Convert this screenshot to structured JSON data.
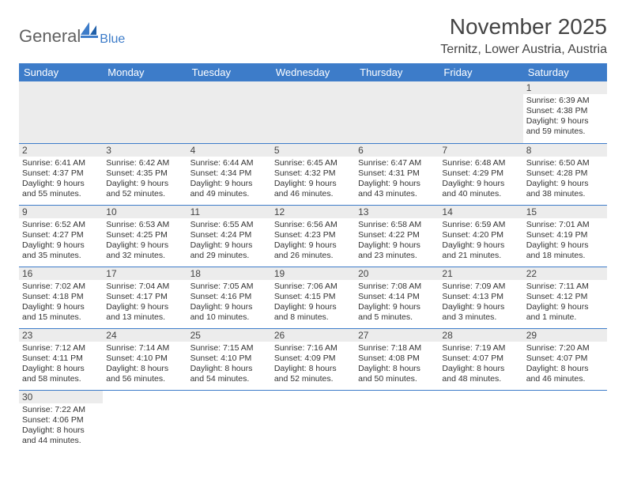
{
  "logo": {
    "general": "General",
    "blue": "Blue"
  },
  "title": "November 2025",
  "location": "Ternitz, Lower Austria, Austria",
  "colors": {
    "header_bg": "#3d7cc9",
    "header_fg": "#ffffff",
    "daynum_bg": "#ececec",
    "rule": "#3d7cc9",
    "text": "#333333"
  },
  "day_names": [
    "Sunday",
    "Monday",
    "Tuesday",
    "Wednesday",
    "Thursday",
    "Friday",
    "Saturday"
  ],
  "lead_blanks": 6,
  "days": [
    {
      "n": 1,
      "sr": "6:39 AM",
      "ss": "4:38 PM",
      "dl": "9 hours and 59 minutes."
    },
    {
      "n": 2,
      "sr": "6:41 AM",
      "ss": "4:37 PM",
      "dl": "9 hours and 55 minutes."
    },
    {
      "n": 3,
      "sr": "6:42 AM",
      "ss": "4:35 PM",
      "dl": "9 hours and 52 minutes."
    },
    {
      "n": 4,
      "sr": "6:44 AM",
      "ss": "4:34 PM",
      "dl": "9 hours and 49 minutes."
    },
    {
      "n": 5,
      "sr": "6:45 AM",
      "ss": "4:32 PM",
      "dl": "9 hours and 46 minutes."
    },
    {
      "n": 6,
      "sr": "6:47 AM",
      "ss": "4:31 PM",
      "dl": "9 hours and 43 minutes."
    },
    {
      "n": 7,
      "sr": "6:48 AM",
      "ss": "4:29 PM",
      "dl": "9 hours and 40 minutes."
    },
    {
      "n": 8,
      "sr": "6:50 AM",
      "ss": "4:28 PM",
      "dl": "9 hours and 38 minutes."
    },
    {
      "n": 9,
      "sr": "6:52 AM",
      "ss": "4:27 PM",
      "dl": "9 hours and 35 minutes."
    },
    {
      "n": 10,
      "sr": "6:53 AM",
      "ss": "4:25 PM",
      "dl": "9 hours and 32 minutes."
    },
    {
      "n": 11,
      "sr": "6:55 AM",
      "ss": "4:24 PM",
      "dl": "9 hours and 29 minutes."
    },
    {
      "n": 12,
      "sr": "6:56 AM",
      "ss": "4:23 PM",
      "dl": "9 hours and 26 minutes."
    },
    {
      "n": 13,
      "sr": "6:58 AM",
      "ss": "4:22 PM",
      "dl": "9 hours and 23 minutes."
    },
    {
      "n": 14,
      "sr": "6:59 AM",
      "ss": "4:20 PM",
      "dl": "9 hours and 21 minutes."
    },
    {
      "n": 15,
      "sr": "7:01 AM",
      "ss": "4:19 PM",
      "dl": "9 hours and 18 minutes."
    },
    {
      "n": 16,
      "sr": "7:02 AM",
      "ss": "4:18 PM",
      "dl": "9 hours and 15 minutes."
    },
    {
      "n": 17,
      "sr": "7:04 AM",
      "ss": "4:17 PM",
      "dl": "9 hours and 13 minutes."
    },
    {
      "n": 18,
      "sr": "7:05 AM",
      "ss": "4:16 PM",
      "dl": "9 hours and 10 minutes."
    },
    {
      "n": 19,
      "sr": "7:06 AM",
      "ss": "4:15 PM",
      "dl": "9 hours and 8 minutes."
    },
    {
      "n": 20,
      "sr": "7:08 AM",
      "ss": "4:14 PM",
      "dl": "9 hours and 5 minutes."
    },
    {
      "n": 21,
      "sr": "7:09 AM",
      "ss": "4:13 PM",
      "dl": "9 hours and 3 minutes."
    },
    {
      "n": 22,
      "sr": "7:11 AM",
      "ss": "4:12 PM",
      "dl": "9 hours and 1 minute."
    },
    {
      "n": 23,
      "sr": "7:12 AM",
      "ss": "4:11 PM",
      "dl": "8 hours and 58 minutes."
    },
    {
      "n": 24,
      "sr": "7:14 AM",
      "ss": "4:10 PM",
      "dl": "8 hours and 56 minutes."
    },
    {
      "n": 25,
      "sr": "7:15 AM",
      "ss": "4:10 PM",
      "dl": "8 hours and 54 minutes."
    },
    {
      "n": 26,
      "sr": "7:16 AM",
      "ss": "4:09 PM",
      "dl": "8 hours and 52 minutes."
    },
    {
      "n": 27,
      "sr": "7:18 AM",
      "ss": "4:08 PM",
      "dl": "8 hours and 50 minutes."
    },
    {
      "n": 28,
      "sr": "7:19 AM",
      "ss": "4:07 PM",
      "dl": "8 hours and 48 minutes."
    },
    {
      "n": 29,
      "sr": "7:20 AM",
      "ss": "4:07 PM",
      "dl": "8 hours and 46 minutes."
    },
    {
      "n": 30,
      "sr": "7:22 AM",
      "ss": "4:06 PM",
      "dl": "8 hours and 44 minutes."
    }
  ],
  "labels": {
    "sunrise": "Sunrise: ",
    "sunset": "Sunset: ",
    "daylight": "Daylight: "
  }
}
